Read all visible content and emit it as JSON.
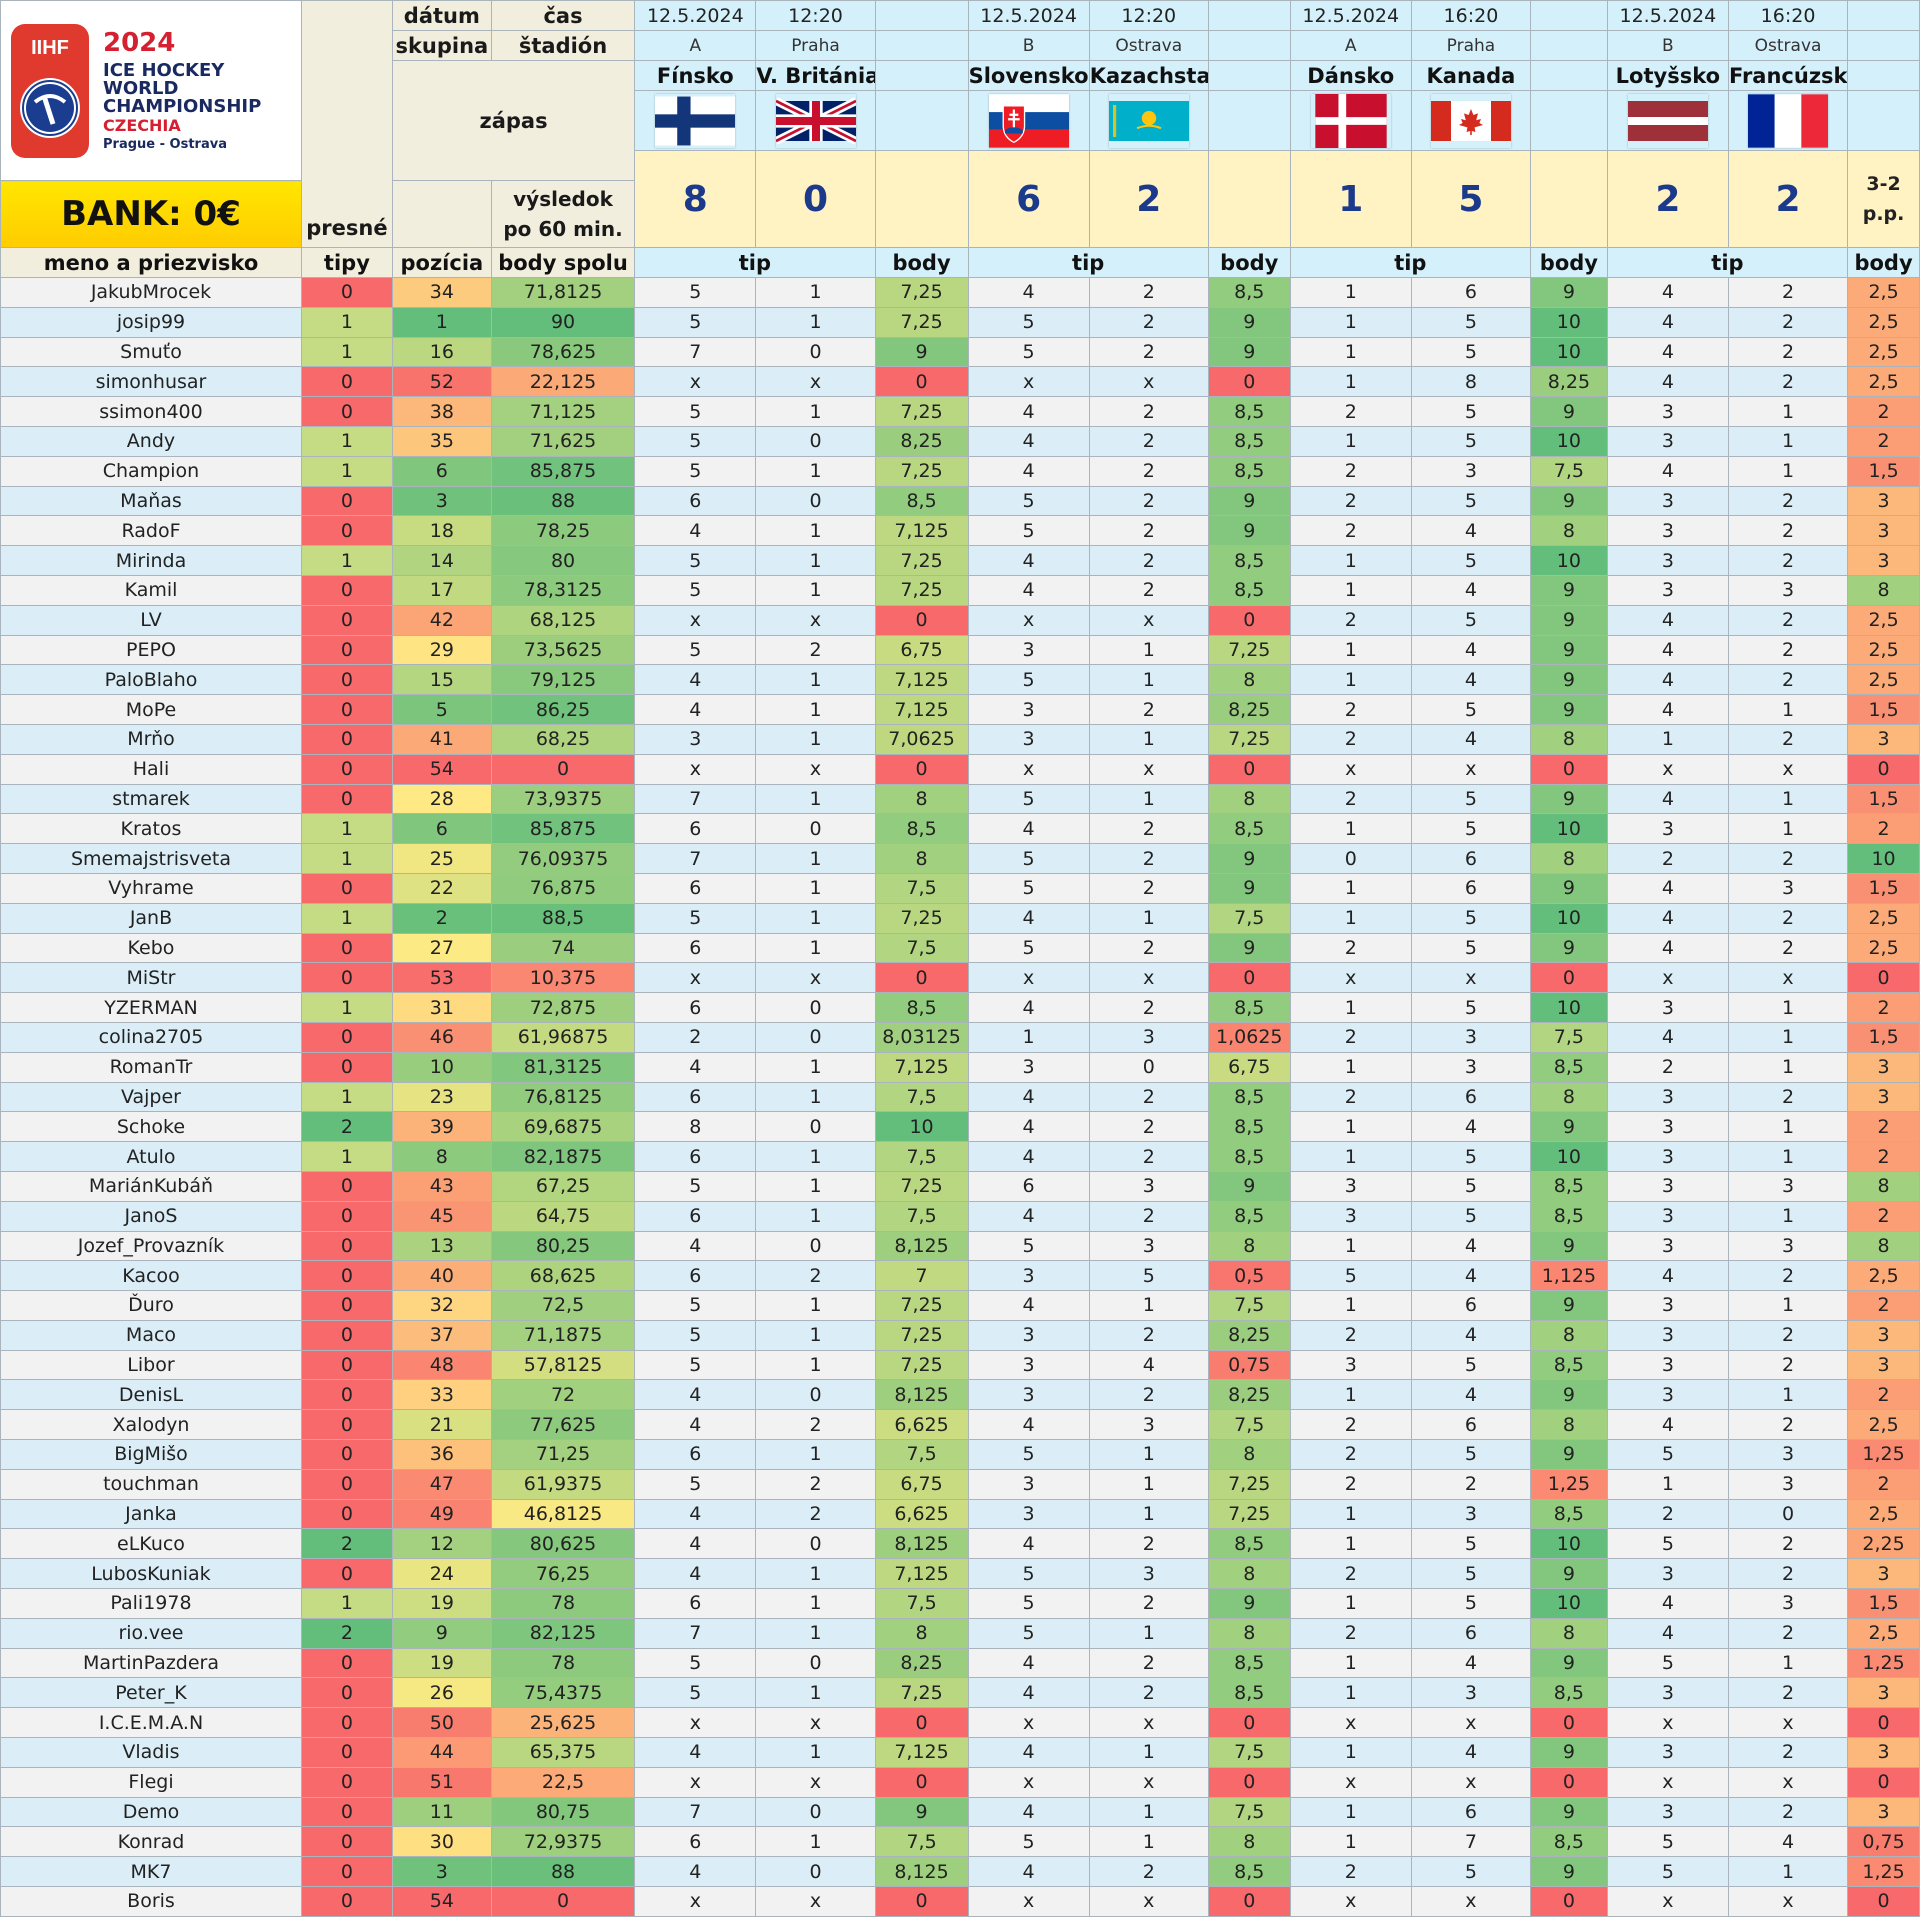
{
  "logo": {
    "brand": "IIHF",
    "year": "2024",
    "line1": "ICE HOCKEY",
    "line2": "WORLD",
    "line3": "CHAMPIONSHIP",
    "country": "CZECHIA",
    "cities": "Prague - Ostrava"
  },
  "bank": "BANK: 0€",
  "headers": {
    "datum": "dátum",
    "cas": "čas",
    "skupina": "skupina",
    "stadion": "štadión",
    "zapas": "zápas",
    "vysledok1": "výsledok",
    "vysledok2": "po 60 min.",
    "presne": "presné",
    "tipy": "tipy",
    "meno": "meno a priezvisko",
    "pozicia": "pozícia",
    "body_spolu": "body spolu",
    "tip": "tip",
    "body": "body"
  },
  "matches": [
    {
      "date": "12.5.2024",
      "time": "12:20",
      "group": "A",
      "venue": "Praha",
      "home": "Fínsko",
      "away": "V. Británia",
      "home_flag": "finland-flag-icon",
      "away_flag": "uk-flag-icon",
      "home_score": "8",
      "away_score": "0",
      "note": ""
    },
    {
      "date": "12.5.2024",
      "time": "12:20",
      "group": "B",
      "venue": "Ostrava",
      "home": "Slovensko",
      "away": "Kazachstan",
      "home_flag": "slovakia-flag-icon",
      "away_flag": "kazakhstan-flag-icon",
      "home_score": "6",
      "away_score": "2",
      "note": ""
    },
    {
      "date": "12.5.2024",
      "time": "16:20",
      "group": "A",
      "venue": "Praha",
      "home": "Dánsko",
      "away": "Kanada",
      "home_flag": "denmark-flag-icon",
      "away_flag": "canada-flag-icon",
      "home_score": "1",
      "away_score": "5",
      "note": ""
    },
    {
      "date": "12.5.2024",
      "time": "16:20",
      "group": "B",
      "venue": "Ostrava",
      "home": "Lotyšsko",
      "away": "Francúzsko",
      "home_flag": "latvia-flag-icon",
      "away_flag": "france-flag-icon",
      "home_score": "2",
      "away_score": "2",
      "note": "3-2 p.p."
    }
  ],
  "colors": {
    "red": "#f8696b",
    "orange": "#fba276",
    "yellow": "#ffeb84",
    "lightgreen": "#c6dc84",
    "green": "#63be7b"
  },
  "rows": [
    [
      "JakubMrocek",
      "0",
      "34",
      "71,8125",
      "5",
      "1",
      "7,25",
      "4",
      "2",
      "8,5",
      "1",
      "6",
      "9",
      "4",
      "2",
      "2,5"
    ],
    [
      "josip99",
      "1",
      "1",
      "90",
      "5",
      "1",
      "7,25",
      "5",
      "2",
      "9",
      "1",
      "5",
      "10",
      "4",
      "2",
      "2,5"
    ],
    [
      "Smuťo",
      "1",
      "16",
      "78,625",
      "7",
      "0",
      "9",
      "5",
      "2",
      "9",
      "1",
      "5",
      "10",
      "4",
      "2",
      "2,5"
    ],
    [
      "simonhusar",
      "0",
      "52",
      "22,125",
      "x",
      "x",
      "0",
      "x",
      "x",
      "0",
      "1",
      "8",
      "8,25",
      "4",
      "2",
      "2,5"
    ],
    [
      "ssimon400",
      "0",
      "38",
      "71,125",
      "5",
      "1",
      "7,25",
      "4",
      "2",
      "8,5",
      "2",
      "5",
      "9",
      "3",
      "1",
      "2"
    ],
    [
      "Andy",
      "1",
      "35",
      "71,625",
      "5",
      "0",
      "8,25",
      "4",
      "2",
      "8,5",
      "1",
      "5",
      "10",
      "3",
      "1",
      "2"
    ],
    [
      "Champion",
      "1",
      "6",
      "85,875",
      "5",
      "1",
      "7,25",
      "4",
      "2",
      "8,5",
      "2",
      "3",
      "7,5",
      "4",
      "1",
      "1,5"
    ],
    [
      "Maňas",
      "0",
      "3",
      "88",
      "6",
      "0",
      "8,5",
      "5",
      "2",
      "9",
      "2",
      "5",
      "9",
      "3",
      "2",
      "3"
    ],
    [
      "RadoF",
      "0",
      "18",
      "78,25",
      "4",
      "1",
      "7,125",
      "5",
      "2",
      "9",
      "2",
      "4",
      "8",
      "3",
      "2",
      "3"
    ],
    [
      "Mirinda",
      "1",
      "14",
      "80",
      "5",
      "1",
      "7,25",
      "4",
      "2",
      "8,5",
      "1",
      "5",
      "10",
      "3",
      "2",
      "3"
    ],
    [
      "Kamil",
      "0",
      "17",
      "78,3125",
      "5",
      "1",
      "7,25",
      "4",
      "2",
      "8,5",
      "1",
      "4",
      "9",
      "3",
      "3",
      "8"
    ],
    [
      "LV",
      "0",
      "42",
      "68,125",
      "x",
      "x",
      "0",
      "x",
      "x",
      "0",
      "2",
      "5",
      "9",
      "4",
      "2",
      "2,5"
    ],
    [
      "PEPO",
      "0",
      "29",
      "73,5625",
      "5",
      "2",
      "6,75",
      "3",
      "1",
      "7,25",
      "1",
      "4",
      "9",
      "4",
      "2",
      "2,5"
    ],
    [
      "PaloBlaho",
      "0",
      "15",
      "79,125",
      "4",
      "1",
      "7,125",
      "5",
      "1",
      "8",
      "1",
      "4",
      "9",
      "4",
      "2",
      "2,5"
    ],
    [
      "MoPe",
      "0",
      "5",
      "86,25",
      "4",
      "1",
      "7,125",
      "3",
      "2",
      "8,25",
      "2",
      "5",
      "9",
      "4",
      "1",
      "1,5"
    ],
    [
      "Mrňo",
      "0",
      "41",
      "68,25",
      "3",
      "1",
      "7,0625",
      "3",
      "1",
      "7,25",
      "2",
      "4",
      "8",
      "1",
      "2",
      "3"
    ],
    [
      "Hali",
      "0",
      "54",
      "0",
      "x",
      "x",
      "0",
      "x",
      "x",
      "0",
      "x",
      "x",
      "0",
      "x",
      "x",
      "0"
    ],
    [
      "stmarek",
      "0",
      "28",
      "73,9375",
      "7",
      "1",
      "8",
      "5",
      "1",
      "8",
      "2",
      "5",
      "9",
      "4",
      "1",
      "1,5"
    ],
    [
      "Kratos",
      "1",
      "6",
      "85,875",
      "6",
      "0",
      "8,5",
      "4",
      "2",
      "8,5",
      "1",
      "5",
      "10",
      "3",
      "1",
      "2"
    ],
    [
      "Smemajstrisveta",
      "1",
      "25",
      "76,09375",
      "7",
      "1",
      "8",
      "5",
      "2",
      "9",
      "0",
      "6",
      "8",
      "2",
      "2",
      "10"
    ],
    [
      "Vyhrame",
      "0",
      "22",
      "76,875",
      "6",
      "1",
      "7,5",
      "5",
      "2",
      "9",
      "1",
      "6",
      "9",
      "4",
      "3",
      "1,5"
    ],
    [
      "JanB",
      "1",
      "2",
      "88,5",
      "5",
      "1",
      "7,25",
      "4",
      "1",
      "7,5",
      "1",
      "5",
      "10",
      "4",
      "2",
      "2,5"
    ],
    [
      "Kebo",
      "0",
      "27",
      "74",
      "6",
      "1",
      "7,5",
      "5",
      "2",
      "9",
      "2",
      "5",
      "9",
      "4",
      "2",
      "2,5"
    ],
    [
      "MiStr",
      "0",
      "53",
      "10,375",
      "x",
      "x",
      "0",
      "x",
      "x",
      "0",
      "x",
      "x",
      "0",
      "x",
      "x",
      "0"
    ],
    [
      "YZERMAN",
      "1",
      "31",
      "72,875",
      "6",
      "0",
      "8,5",
      "4",
      "2",
      "8,5",
      "1",
      "5",
      "10",
      "3",
      "1",
      "2"
    ],
    [
      "colina2705",
      "0",
      "46",
      "61,96875",
      "2",
      "0",
      "8,03125",
      "1",
      "3",
      "1,0625",
      "2",
      "3",
      "7,5",
      "4",
      "1",
      "1,5"
    ],
    [
      "RomanTr",
      "0",
      "10",
      "81,3125",
      "4",
      "1",
      "7,125",
      "3",
      "0",
      "6,75",
      "1",
      "3",
      "8,5",
      "2",
      "1",
      "3"
    ],
    [
      "Vajper",
      "1",
      "23",
      "76,8125",
      "6",
      "1",
      "7,5",
      "4",
      "2",
      "8,5",
      "2",
      "6",
      "8",
      "3",
      "2",
      "3"
    ],
    [
      "Schoke",
      "2",
      "39",
      "69,6875",
      "8",
      "0",
      "10",
      "4",
      "2",
      "8,5",
      "1",
      "4",
      "9",
      "3",
      "1",
      "2"
    ],
    [
      "Atulo",
      "1",
      "8",
      "82,1875",
      "6",
      "1",
      "7,5",
      "4",
      "2",
      "8,5",
      "1",
      "5",
      "10",
      "3",
      "1",
      "2"
    ],
    [
      "MariánKubáň",
      "0",
      "43",
      "67,25",
      "5",
      "1",
      "7,25",
      "6",
      "3",
      "9",
      "3",
      "5",
      "8,5",
      "3",
      "3",
      "8"
    ],
    [
      "JanoS",
      "0",
      "45",
      "64,75",
      "6",
      "1",
      "7,5",
      "4",
      "2",
      "8,5",
      "3",
      "5",
      "8,5",
      "3",
      "1",
      "2"
    ],
    [
      "Jozef_Provazník",
      "0",
      "13",
      "80,25",
      "4",
      "0",
      "8,125",
      "5",
      "3",
      "8",
      "1",
      "4",
      "9",
      "3",
      "3",
      "8"
    ],
    [
      "Kacoo",
      "0",
      "40",
      "68,625",
      "6",
      "2",
      "7",
      "3",
      "5",
      "0,5",
      "5",
      "4",
      "1,125",
      "4",
      "2",
      "2,5"
    ],
    [
      "Ďuro",
      "0",
      "32",
      "72,5",
      "5",
      "1",
      "7,25",
      "4",
      "1",
      "7,5",
      "1",
      "6",
      "9",
      "3",
      "1",
      "2"
    ],
    [
      "Maco",
      "0",
      "37",
      "71,1875",
      "5",
      "1",
      "7,25",
      "3",
      "2",
      "8,25",
      "2",
      "4",
      "8",
      "3",
      "2",
      "3"
    ],
    [
      "Libor",
      "0",
      "48",
      "57,8125",
      "5",
      "1",
      "7,25",
      "3",
      "4",
      "0,75",
      "3",
      "5",
      "8,5",
      "3",
      "2",
      "3"
    ],
    [
      "DenisL",
      "0",
      "33",
      "72",
      "4",
      "0",
      "8,125",
      "3",
      "2",
      "8,25",
      "1",
      "4",
      "9",
      "3",
      "1",
      "2"
    ],
    [
      "Xalodyn",
      "0",
      "21",
      "77,625",
      "4",
      "2",
      "6,625",
      "4",
      "3",
      "7,5",
      "2",
      "6",
      "8",
      "4",
      "2",
      "2,5"
    ],
    [
      "BigMišo",
      "0",
      "36",
      "71,25",
      "6",
      "1",
      "7,5",
      "5",
      "1",
      "8",
      "2",
      "5",
      "9",
      "5",
      "3",
      "1,25"
    ],
    [
      "touchman",
      "0",
      "47",
      "61,9375",
      "5",
      "2",
      "6,75",
      "3",
      "1",
      "7,25",
      "2",
      "2",
      "1,25",
      "1",
      "3",
      "2"
    ],
    [
      "Janka",
      "0",
      "49",
      "46,8125",
      "4",
      "2",
      "6,625",
      "3",
      "1",
      "7,25",
      "1",
      "3",
      "8,5",
      "2",
      "0",
      "2,5"
    ],
    [
      "eLKuco",
      "2",
      "12",
      "80,625",
      "4",
      "0",
      "8,125",
      "4",
      "2",
      "8,5",
      "1",
      "5",
      "10",
      "5",
      "2",
      "2,25"
    ],
    [
      "LubosKuniak",
      "0",
      "24",
      "76,25",
      "4",
      "1",
      "7,125",
      "5",
      "3",
      "8",
      "2",
      "5",
      "9",
      "3",
      "2",
      "3"
    ],
    [
      "Pali1978",
      "1",
      "19",
      "78",
      "6",
      "1",
      "7,5",
      "5",
      "2",
      "9",
      "1",
      "5",
      "10",
      "4",
      "3",
      "1,5"
    ],
    [
      "rio.vee",
      "2",
      "9",
      "82,125",
      "7",
      "1",
      "8",
      "5",
      "1",
      "8",
      "2",
      "6",
      "8",
      "4",
      "2",
      "2,5"
    ],
    [
      "MartinPazdera",
      "0",
      "19",
      "78",
      "5",
      "0",
      "8,25",
      "4",
      "2",
      "8,5",
      "1",
      "4",
      "9",
      "5",
      "1",
      "1,25"
    ],
    [
      "Peter_K",
      "0",
      "26",
      "75,4375",
      "5",
      "1",
      "7,25",
      "4",
      "2",
      "8,5",
      "1",
      "3",
      "8,5",
      "3",
      "2",
      "3"
    ],
    [
      "I.C.E.M.A.N",
      "0",
      "50",
      "25,625",
      "x",
      "x",
      "0",
      "x",
      "x",
      "0",
      "x",
      "x",
      "0",
      "x",
      "x",
      "0"
    ],
    [
      "Vladis",
      "0",
      "44",
      "65,375",
      "4",
      "1",
      "7,125",
      "4",
      "1",
      "7,5",
      "1",
      "4",
      "9",
      "3",
      "2",
      "3"
    ],
    [
      "Flegi",
      "0",
      "51",
      "22,5",
      "x",
      "x",
      "0",
      "x",
      "x",
      "0",
      "x",
      "x",
      "0",
      "x",
      "x",
      "0"
    ],
    [
      "Demo",
      "0",
      "11",
      "80,75",
      "7",
      "0",
      "9",
      "4",
      "1",
      "7,5",
      "1",
      "6",
      "9",
      "3",
      "2",
      "3"
    ],
    [
      "Konrad",
      "0",
      "30",
      "72,9375",
      "6",
      "1",
      "7,5",
      "5",
      "1",
      "8",
      "1",
      "7",
      "8,5",
      "5",
      "4",
      "0,75"
    ],
    [
      "MK7",
      "0",
      "3",
      "88",
      "4",
      "0",
      "8,125",
      "4",
      "2",
      "8,5",
      "2",
      "5",
      "9",
      "5",
      "1",
      "1,25"
    ],
    [
      "Boris",
      "0",
      "54",
      "0",
      "x",
      "x",
      "0",
      "x",
      "x",
      "0",
      "x",
      "x",
      "0",
      "x",
      "x",
      "0"
    ]
  ]
}
